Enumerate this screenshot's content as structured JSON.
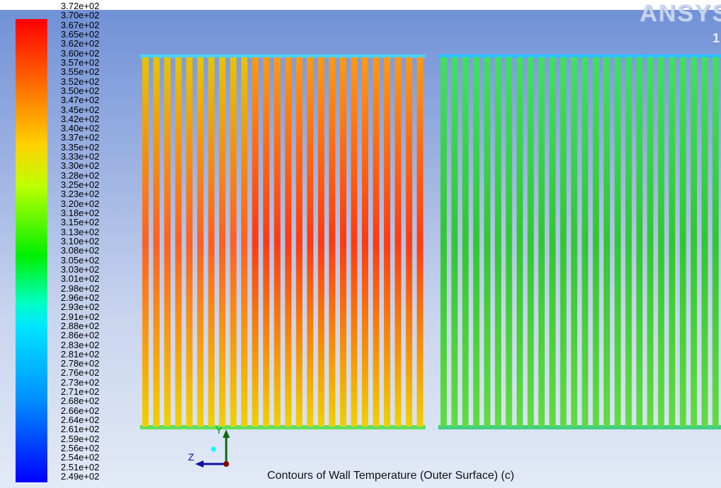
{
  "watermark": {
    "text": "ANSYS",
    "subtext": "1"
  },
  "legend": {
    "gradient": [
      "#ff0000",
      "#ff6a00",
      "#ffd000",
      "#bfff00",
      "#00f000",
      "#00ffc0",
      "#00e8ff",
      "#0090ff",
      "#0000ff"
    ],
    "labels": [
      "3.72e+02",
      "3.70e+02",
      "3.67e+02",
      "3.65e+02",
      "3.62e+02",
      "3.60e+02",
      "3.57e+02",
      "3.55e+02",
      "3.52e+02",
      "3.50e+02",
      "3.47e+02",
      "3.45e+02",
      "3.42e+02",
      "3.40e+02",
      "3.37e+02",
      "3.35e+02",
      "3.33e+02",
      "3.30e+02",
      "3.28e+02",
      "3.25e+02",
      "3.23e+02",
      "3.20e+02",
      "3.18e+02",
      "3.15e+02",
      "3.13e+02",
      "3.10e+02",
      "3.08e+02",
      "3.05e+02",
      "3.03e+02",
      "3.01e+02",
      "2.98e+02",
      "2.96e+02",
      "2.93e+02",
      "2.91e+02",
      "2.88e+02",
      "2.86e+02",
      "2.83e+02",
      "2.81e+02",
      "2.78e+02",
      "2.76e+02",
      "2.73e+02",
      "2.71e+02",
      "2.68e+02",
      "2.66e+02",
      "2.64e+02",
      "2.61e+02",
      "2.59e+02",
      "2.56e+02",
      "2.54e+02",
      "2.51e+02",
      "2.49e+02"
    ]
  },
  "contour": {
    "caption": "Contours of Wall Temperature (Outer Surface) (c)",
    "left_bank": {
      "tube_count": 26,
      "colors": {
        "top": "#e8c400",
        "middle": "#ff6020",
        "bottom": "#f0d000",
        "edge": "#60e060",
        "cap": "#4dd0ff"
      },
      "hot_colors": {
        "middle": "#ff3a10",
        "top": "#ff9a10"
      }
    },
    "right_bank": {
      "tube_count": 26,
      "colors": {
        "top": "#40e060",
        "middle": "#30c830",
        "bottom": "#60dc40",
        "edge": "#40d080",
        "cap": "#30c0ff"
      }
    }
  },
  "axes": {
    "x_label": "Z",
    "y_label": "Y"
  }
}
